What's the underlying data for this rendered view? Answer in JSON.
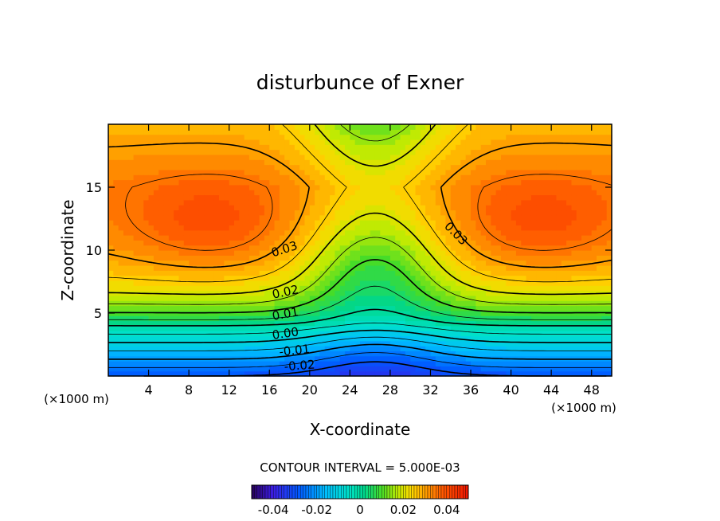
{
  "chart_data": {
    "type": "contour",
    "title": "disturbunce of Exner",
    "xlabel": "X-coordinate",
    "ylabel": "Z-coordinate",
    "x_unit": "(×1000 m)",
    "xlim": [
      0,
      50
    ],
    "ylim": [
      0,
      20
    ],
    "x_ticks": [
      4,
      8,
      12,
      16,
      20,
      24,
      28,
      32,
      36,
      40,
      44,
      48
    ],
    "y_ticks": [
      5,
      10,
      15
    ],
    "contour_interval_label": "CONTOUR INTERVAL = 5.000E-03",
    "contour_labels": [
      "0.03",
      "0.03",
      "0.02",
      "0.01",
      "0.00",
      "-0.01",
      "-0.02"
    ],
    "colorbar": {
      "range": [
        -0.05,
        0.05
      ],
      "ticks": [
        -0.04,
        -0.02,
        0,
        0.02,
        0.04
      ],
      "tick_labels": [
        "-0.04",
        "-0.02",
        "0",
        "0.02",
        "0.04"
      ]
    },
    "field_summary": {
      "min": -0.03,
      "max": 0.0375,
      "maxima_locations_x": [
        10,
        43
      ],
      "maxima_height_z": 12.2,
      "upper_saddle_x": 26.5,
      "upper_saddle_z": 18.6
    },
    "colors": {
      "negative_extreme": "#2424ff",
      "zero": "#00d7a0",
      "positive_extreme": "#ff1a00"
    }
  }
}
